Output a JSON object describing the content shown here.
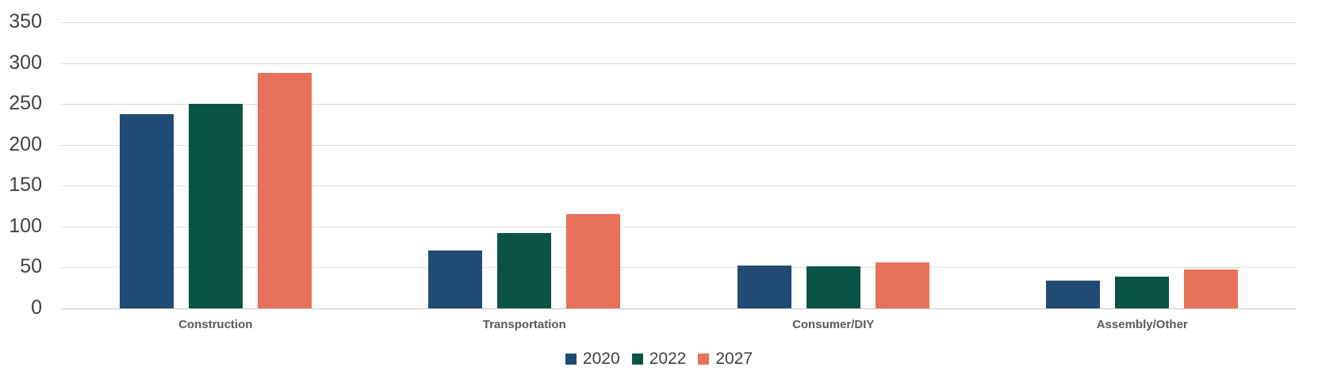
{
  "chart_data": {
    "type": "bar",
    "categories": [
      "Construction",
      "Transportation",
      "Consumer/DIY",
      "Assembly/Other"
    ],
    "series": [
      {
        "name": "2020",
        "color": "#1F4B74",
        "values": [
          238,
          71,
          52,
          34
        ]
      },
      {
        "name": "2022",
        "color": "#0B5345",
        "values": [
          250,
          92,
          51,
          39
        ]
      },
      {
        "name": "2027",
        "color": "#E8715A",
        "values": [
          288,
          115,
          56,
          48
        ]
      }
    ],
    "title": "",
    "xlabel": "",
    "ylabel": "",
    "ylim": [
      0,
      350
    ],
    "yticks": [
      350,
      300,
      250,
      200,
      150,
      100,
      50,
      0
    ],
    "grid": true,
    "legend_position": "bottom-center",
    "legend_labels": [
      "2020",
      "2022",
      "2027"
    ]
  },
  "style": {
    "background_color": "#FFFFFF",
    "gridline_color": "#D9D9D9",
    "zero_line_color": "#C8C8C8",
    "y_tick_label_color": "#424242",
    "category_label_color": "#595959",
    "legend_text_color": "#404040"
  }
}
